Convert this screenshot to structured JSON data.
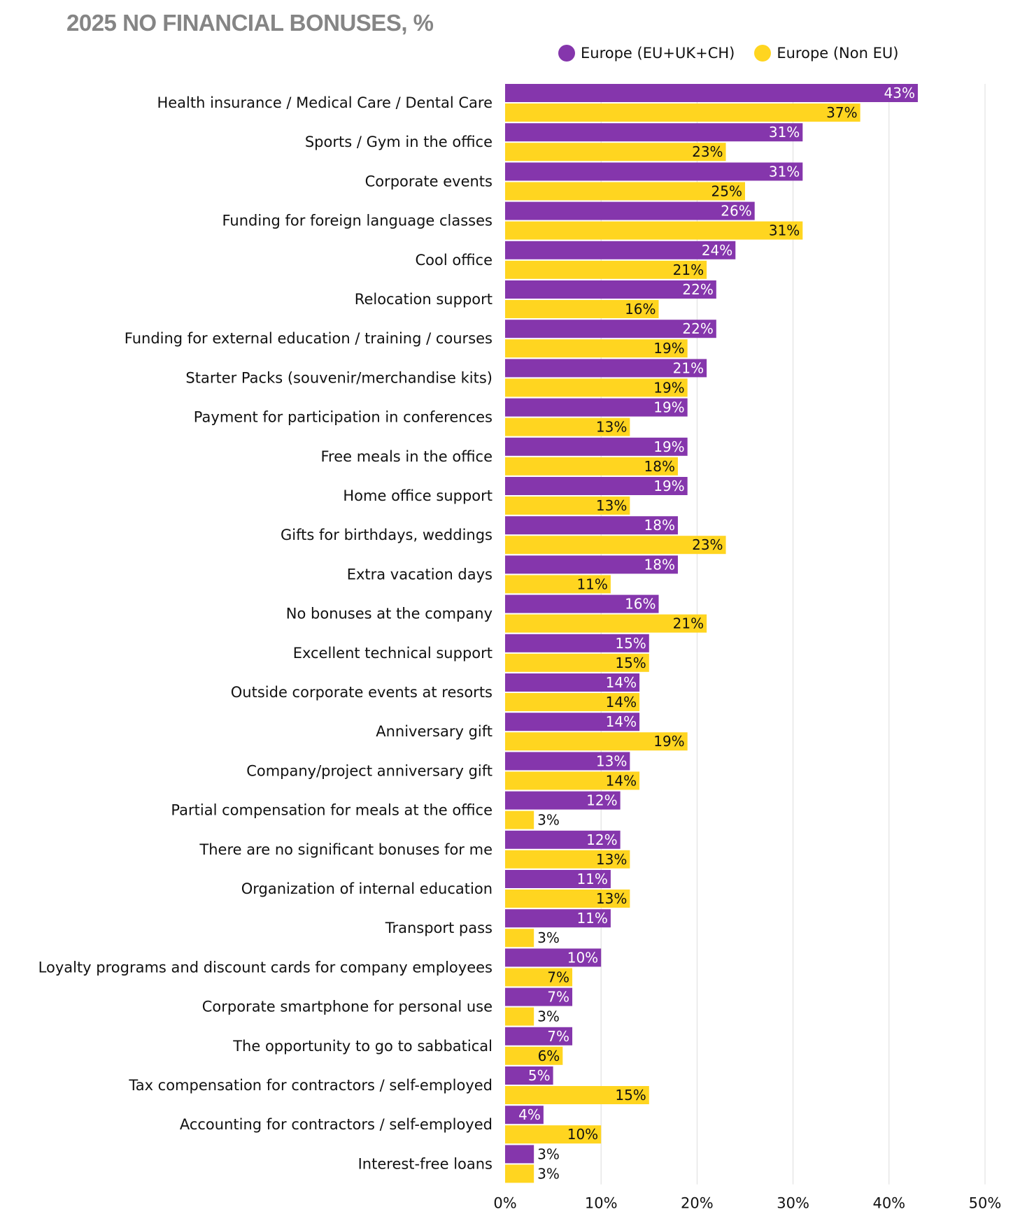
{
  "chart_data": {
    "type": "bar",
    "orientation": "horizontal",
    "title": "2025 NO FINANCIAL BONUSES, %",
    "xlabel": "",
    "ylabel": "",
    "xlim": [
      0,
      50
    ],
    "x_ticks": [
      "0%",
      "10%",
      "20%",
      "30%",
      "40%",
      "50%"
    ],
    "grid": true,
    "legend_position": "top-right",
    "categories": [
      "Health insurance / Medical Care / Dental Care",
      "Sports / Gym in the office",
      "Corporate events",
      "Funding for foreign language classes",
      "Cool office",
      "Relocation support",
      "Funding for external education / training / courses",
      "Starter Packs (souvenir/merchandise kits)",
      "Payment for participation in conferences",
      "Free meals in the office",
      "Home office support",
      "Gifts for birthdays, weddings",
      "Extra vacation days",
      "No bonuses at the company",
      "Excellent technical support",
      "Outside corporate events at resorts",
      "Anniversary gift",
      "Company/project anniversary gift",
      "Partial compensation for meals at the office",
      "There are no significant bonuses for me",
      "Organization of internal education",
      "Transport pass",
      "Loyalty programs and discount cards for company employees",
      "Corporate smartphone for personal use",
      "The opportunity to go to sabbatical",
      "Tax compensation for contractors / self-employed",
      "Accounting for contractors / self-employed",
      "Interest-free loans"
    ],
    "series": [
      {
        "name": "Europe (EU+UK+CH)",
        "color": "#8536AC",
        "label_color": "#FFFFFF",
        "values": [
          43,
          31,
          31,
          26,
          24,
          22,
          22,
          21,
          19,
          19,
          19,
          18,
          18,
          16,
          15,
          14,
          14,
          13,
          12,
          12,
          11,
          11,
          10,
          7,
          7,
          5,
          4,
          3
        ]
      },
      {
        "name": "Europe (Non EU)",
        "color": "#FFD520",
        "label_color": "#111111",
        "values": [
          37,
          23,
          25,
          31,
          21,
          16,
          19,
          19,
          13,
          18,
          13,
          23,
          11,
          21,
          15,
          14,
          19,
          14,
          3,
          13,
          13,
          3,
          7,
          3,
          6,
          15,
          10,
          3
        ]
      }
    ],
    "value_suffix": "%"
  }
}
